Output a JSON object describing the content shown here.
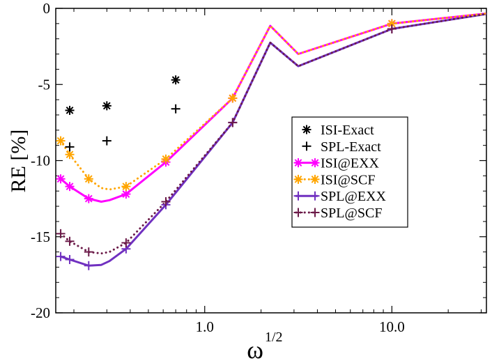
{
  "chart_data": {
    "type": "line",
    "title": "",
    "xlabel": "ω",
    "xlabel_superscript": "1/2",
    "ylabel": "RE [%]",
    "xscale": "log",
    "xlim": [
      0.16,
      32
    ],
    "ylim": [
      -20,
      0
    ],
    "x_ticks": [
      1.0,
      10.0
    ],
    "x_tick_labels": [
      "1.0",
      "10.0"
    ],
    "y_ticks": [
      0,
      -5,
      -10,
      -15,
      -20
    ],
    "y_tick_labels": [
      "0",
      "-5",
      "-10",
      "-15",
      "-20"
    ],
    "legend_position": "center-right",
    "series": [
      {
        "name": "ISI-Exact",
        "style": "markers",
        "marker": "asterisk",
        "color": "#000000",
        "x": [
          0.19,
          0.3,
          0.7
        ],
        "y": [
          -6.7,
          -6.4,
          -4.7
        ]
      },
      {
        "name": "SPL-Exact",
        "style": "markers",
        "marker": "plus",
        "color": "#000000",
        "x": [
          0.19,
          0.3,
          0.7
        ],
        "y": [
          -9.1,
          -8.7,
          -6.6
        ]
      },
      {
        "name": "ISI@EXX",
        "style": "solid",
        "marker": "asterisk",
        "color": "#ff00ff",
        "x": [
          0.17,
          0.19,
          0.24,
          0.28,
          0.31,
          0.38,
          0.62,
          1.41,
          2.24,
          3.16,
          10.0,
          31.6
        ],
        "y": [
          -11.2,
          -11.7,
          -12.5,
          -12.7,
          -12.6,
          -12.2,
          -10.1,
          -5.9,
          -1.15,
          -3.0,
          -1.0,
          -0.35
        ],
        "marker_x": [
          0.17,
          0.19,
          0.24,
          0.38,
          0.62,
          1.41,
          10.0
        ],
        "marker_y": [
          -11.2,
          -11.7,
          -12.5,
          -12.2,
          -10.1,
          -5.9,
          -1.0
        ]
      },
      {
        "name": "ISI@SCF",
        "style": "dotted",
        "marker": "asterisk",
        "color": "#ffa500",
        "x": [
          0.17,
          0.19,
          0.24,
          0.28,
          0.31,
          0.38,
          0.62,
          1.41,
          2.24,
          3.16,
          10.0,
          31.6
        ],
        "y": [
          -8.7,
          -9.6,
          -11.2,
          -11.8,
          -11.9,
          -11.7,
          -9.9,
          -5.9,
          -1.15,
          -3.0,
          -1.0,
          -0.35
        ],
        "marker_x": [
          0.17,
          0.19,
          0.24,
          0.38,
          0.62,
          1.41,
          10.0
        ],
        "marker_y": [
          -8.7,
          -9.6,
          -11.2,
          -11.7,
          -9.9,
          -5.9,
          -1.0
        ]
      },
      {
        "name": "SPL@EXX",
        "style": "solid",
        "marker": "plus",
        "color": "#7030c0",
        "x": [
          0.17,
          0.19,
          0.24,
          0.28,
          0.31,
          0.38,
          0.62,
          1.41,
          2.24,
          3.16,
          10.0,
          31.6
        ],
        "y": [
          -16.3,
          -16.5,
          -16.9,
          -16.85,
          -16.6,
          -15.8,
          -12.9,
          -7.5,
          -2.25,
          -3.8,
          -1.35,
          -0.38
        ],
        "marker_x": [
          0.17,
          0.19,
          0.24,
          0.38,
          0.62,
          1.41,
          10.0
        ],
        "marker_y": [
          -16.3,
          -16.5,
          -16.9,
          -15.8,
          -12.9,
          -7.5,
          -1.35
        ]
      },
      {
        "name": "SPL@SCF",
        "style": "dotted",
        "marker": "plus",
        "color": "#6b1a48",
        "x": [
          0.17,
          0.19,
          0.24,
          0.28,
          0.31,
          0.38,
          0.62,
          1.41,
          2.24,
          3.16,
          10.0,
          31.6
        ],
        "y": [
          -14.8,
          -15.3,
          -16.0,
          -16.1,
          -16.0,
          -15.4,
          -12.7,
          -7.5,
          -2.25,
          -3.8,
          -1.35,
          -0.38
        ],
        "marker_x": [
          0.17,
          0.19,
          0.24,
          0.38,
          0.62,
          1.41,
          10.0
        ],
        "marker_y": [
          -14.8,
          -15.3,
          -16.0,
          -15.4,
          -12.7,
          -7.5,
          -1.35
        ]
      }
    ]
  }
}
